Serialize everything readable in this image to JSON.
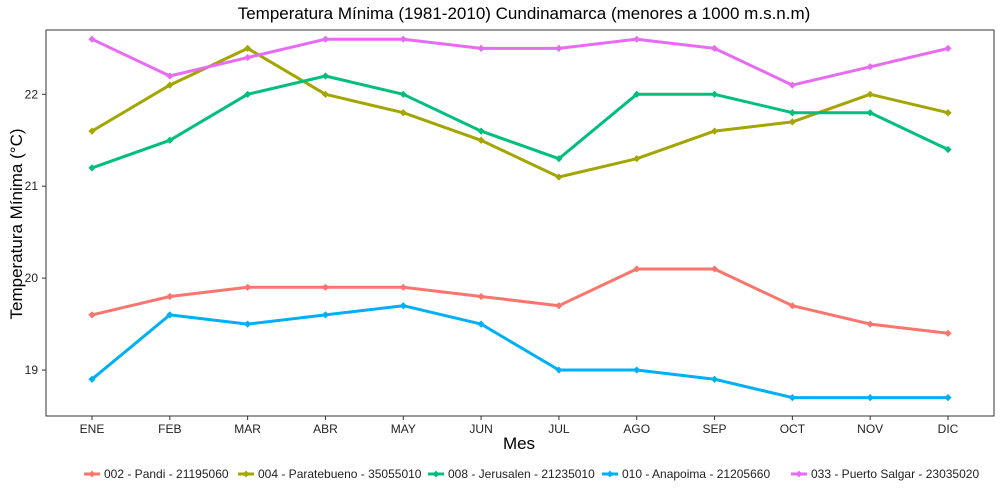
{
  "chart_data": {
    "type": "line",
    "title": "Temperatura Mínima (1981-2010) Cundinamarca (menores a 1000 m.s.n.m)",
    "xlabel": "Mes",
    "ylabel": "Temperatura Mínima (°C)",
    "categories": [
      "ENE",
      "FEB",
      "MAR",
      "ABR",
      "MAY",
      "JUN",
      "JUL",
      "AGO",
      "SEP",
      "OCT",
      "NOV",
      "DIC"
    ],
    "ylim": [
      18.5,
      22.7
    ],
    "yticks": [
      19,
      20,
      21,
      22
    ],
    "grid": false,
    "legend_position": "bottom",
    "series": [
      {
        "name": "002 - Pandi - 21195060",
        "color": "#F8766D",
        "values": [
          19.6,
          19.8,
          19.9,
          19.9,
          19.9,
          19.8,
          19.7,
          20.1,
          20.1,
          19.7,
          19.5,
          19.4
        ]
      },
      {
        "name": "004 - Paratebueno - 35055010",
        "color": "#A3A500",
        "values": [
          21.6,
          22.1,
          22.5,
          22.0,
          21.8,
          21.5,
          21.1,
          21.3,
          21.6,
          21.7,
          22.0,
          21.8
        ]
      },
      {
        "name": "008 - Jerusalen - 21235010",
        "color": "#00BF7D",
        "values": [
          21.2,
          21.5,
          22.0,
          22.2,
          22.0,
          21.6,
          21.3,
          22.0,
          22.0,
          21.8,
          21.8,
          21.4
        ]
      },
      {
        "name": "010 - Anapoima - 21205660",
        "color": "#00B0F6",
        "values": [
          18.9,
          19.6,
          19.5,
          19.6,
          19.7,
          19.5,
          19.0,
          19.0,
          18.9,
          18.7,
          18.7,
          18.7
        ]
      },
      {
        "name": "033 - Puerto Salgar - 23035020",
        "color": "#E76BF3",
        "values": [
          22.6,
          22.2,
          22.4,
          22.6,
          22.6,
          22.5,
          22.5,
          22.6,
          22.5,
          22.1,
          22.3,
          22.5
        ]
      }
    ]
  }
}
